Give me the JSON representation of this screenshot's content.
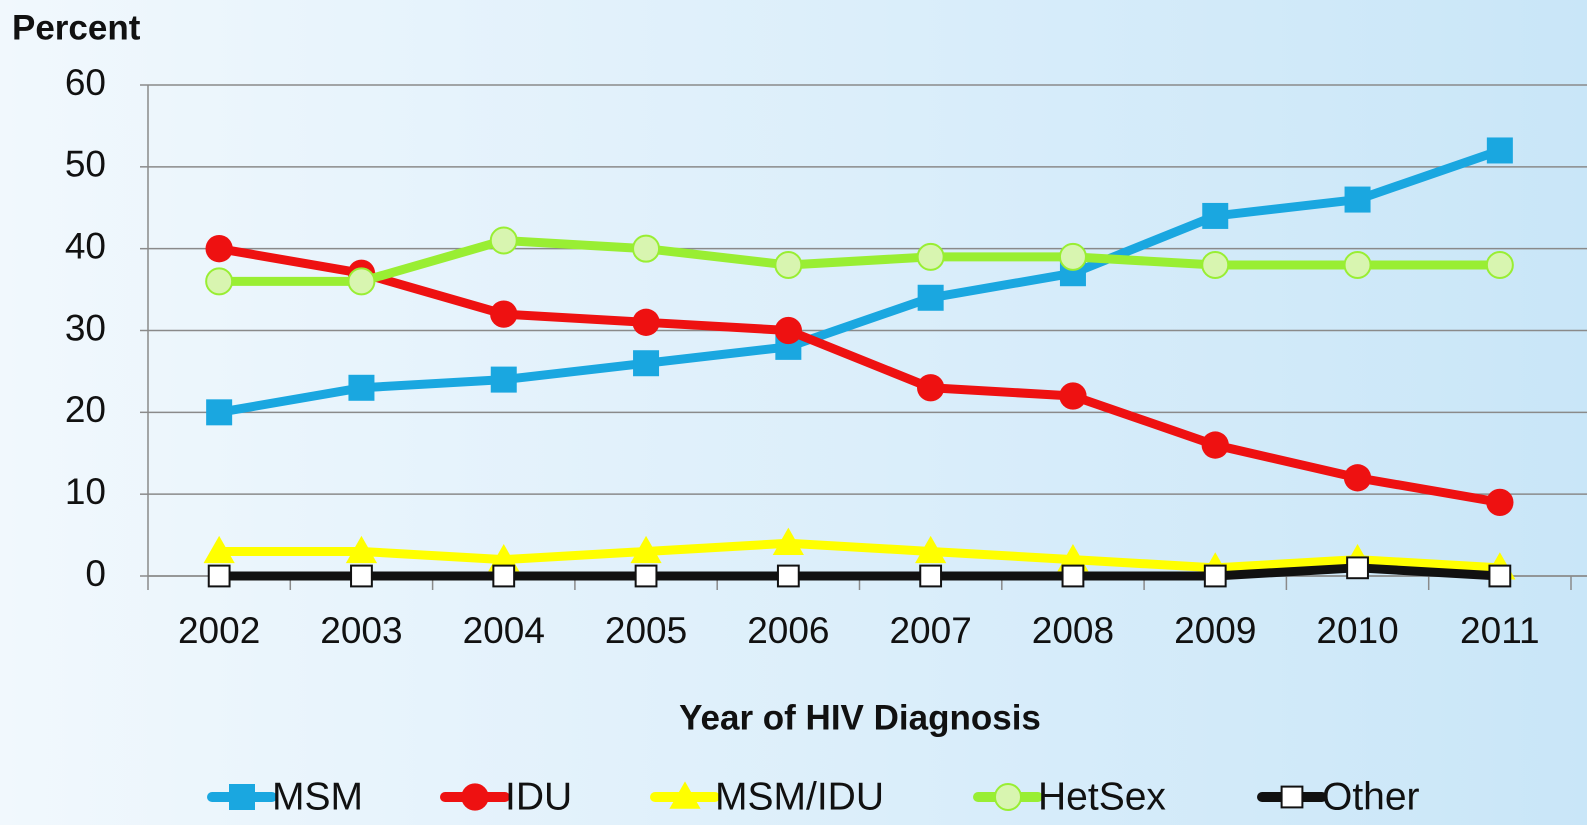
{
  "chart_data": {
    "type": "line",
    "y_label": "Percent",
    "x_label": "Year of HIV Diagnosis",
    "categories": [
      "2002",
      "2003",
      "2004",
      "2005",
      "2006",
      "2007",
      "2008",
      "2009",
      "2010",
      "2011"
    ],
    "ylim": [
      0,
      60
    ],
    "yticks": [
      0,
      10,
      20,
      30,
      40,
      50,
      60
    ],
    "grid": true,
    "series": [
      {
        "name": "MSM",
        "color": "#1aa7e0",
        "marker": "square",
        "values": [
          20,
          23,
          24,
          26,
          28,
          34,
          37,
          44,
          46,
          52
        ]
      },
      {
        "name": "IDU",
        "color": "#ee1111",
        "marker": "circle",
        "values": [
          40,
          37,
          32,
          31,
          30,
          23,
          22,
          16,
          12,
          9
        ]
      },
      {
        "name": "MSM/IDU",
        "color": "#ffff00",
        "marker": "triangle",
        "values": [
          3,
          3,
          2,
          3,
          4,
          3,
          2,
          1,
          2,
          1
        ]
      },
      {
        "name": "HetSex",
        "color": "#99ee33",
        "marker": "open-circle",
        "values": [
          36,
          36,
          41,
          40,
          38,
          39,
          39,
          38,
          38,
          38
        ]
      },
      {
        "name": "Other",
        "color": "#111111",
        "marker": "open-square",
        "values": [
          0,
          0,
          0,
          0,
          0,
          0,
          0,
          0,
          1,
          0
        ]
      }
    ]
  }
}
